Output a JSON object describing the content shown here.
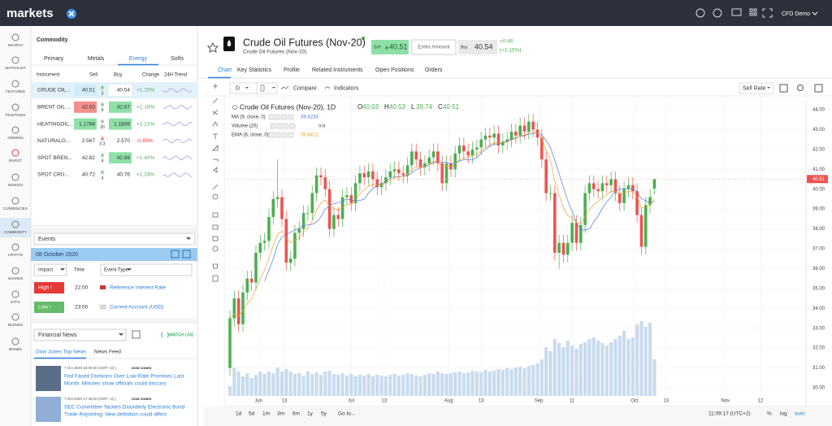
{
  "header": {
    "logo": "markets",
    "account": "CFD Demo"
  },
  "sidebar": [
    "SEARCH",
    "WATCHLIST",
    "FEATURED",
    "POSITIONS",
    "ORDERS",
    "INVEST",
    "INDICES",
    "CURRENCIES",
    "COMMODITY",
    "CRYPTO",
    "SHARES",
    "ETFS",
    "BLENDS",
    "BONDS"
  ],
  "watchlist": {
    "title": "Commodity",
    "tabs": [
      "Primary",
      "Metals",
      "Energy",
      "Softs"
    ],
    "columns": [
      "Instrument",
      "Sell",
      "Buy",
      "Change",
      "24H Trend"
    ],
    "rows": [
      {
        "name": "CRUDE OIL...",
        "sell": "40.51",
        "spread": "3",
        "buy": "40.54",
        "change": "+1.15%",
        "trend": "up",
        "sell_color": "#d3ecf7",
        "buy_color": "#ffffff"
      },
      {
        "name": "BRENT OIL ...",
        "sell": "42.63",
        "spread": "4",
        "buy": "42.67",
        "change": "+1.16%",
        "trend": "up",
        "sell_color": "#f4908a",
        "buy_color": "#8fe0a8"
      },
      {
        "name": "HEATINGOIL...",
        "sell": "1.1788",
        "spread": "20",
        "buy": "1.1808",
        "change": "+1.21%",
        "trend": "up",
        "sell_color": "#8fe0a8",
        "buy_color": "#8fe0a8"
      },
      {
        "name": "NATURALG...",
        "sell": "2.567",
        "spread": "0.3",
        "buy": "2.570",
        "change": "-0.89%",
        "trend": "down",
        "sell_color": "#ffffff",
        "buy_color": "#ffffff"
      },
      {
        "name": "SPOT BREN...",
        "sell": "42.82",
        "spread": "4",
        "buy": "42.86",
        "change": "+1.40%",
        "trend": "up",
        "sell_color": "#ffffff",
        "buy_color": "#8fe0a8"
      },
      {
        "name": "SPOT CRU...",
        "sell": "40.72",
        "spread": "4",
        "buy": "40.76",
        "change": "+1.24%",
        "trend": "up",
        "sell_color": "#ffffff",
        "buy_color": "#ffffff"
      }
    ]
  },
  "events": {
    "title": "Events",
    "date": "08 October 2020",
    "columns": [
      "Impact",
      "Time",
      "Event Type"
    ],
    "rows": [
      {
        "impact": "High !",
        "time": "22:00",
        "event": "Reference Interest Rate",
        "color": "#e53935"
      },
      {
        "impact": "Low !",
        "time": "23:00",
        "event": "Current Account (USD)",
        "color": "#66bb6a"
      }
    ]
  },
  "news": {
    "title": "Financial News",
    "live": "WATCH LIVE",
    "tabs": [
      "Dow Jones Top News",
      "News Feed"
    ],
    "items": [
      {
        "time": "7 Oct 2020 18:00:00 (GMT +2) |",
        "source": "DOW JONES",
        "lines": [
          "Fed Faced Divisions Over Low-Rate Promises Last",
          "Month, Minutes show officials could discuss"
        ]
      },
      {
        "time": "7 Oct 2020 17:48:00 (GMT +2) |",
        "source": "DOW JONES",
        "lines": [
          "SEC Committee Tackles Disorderly Electronic Bond",
          "Trade Reporting; New definition could affect"
        ]
      }
    ]
  },
  "instrument": {
    "name": "Crude Oil Futures (Nov-20)",
    "subtitle": "Crude Oil Futures (Nov-20)",
    "sell_label": "Sell",
    "sell": "40.51",
    "amount": "Enter Amount",
    "buy_label": "Buy",
    "buy": "40.54",
    "change": "+0.46",
    "change_pct": "(+1.15%)",
    "tabs": [
      "Chart",
      "Key Statistics",
      "Profile",
      "Related Instruments",
      "Open Positions",
      "Orders"
    ]
  },
  "toolbar": {
    "interval": "D",
    "compare": "Compare",
    "indicators": "Indicators",
    "price_mode": "Sell Rate"
  },
  "chart_data": {
    "type": "candlestick",
    "title": "Crude Oil Futures (Nov-20), 1D",
    "ohlc_names": [
      "O",
      "H",
      "L",
      "C"
    ],
    "up_color": "#4caf50",
    "down_color": "#ef5350",
    "volume_color": "#c9dbed",
    "indicators": [
      {
        "name": "MA (9, close, 0)",
        "value": "39.4233",
        "color": "#4a79d8"
      },
      {
        "name": "Volume (20)",
        "value": "n/a"
      },
      {
        "name": "EMA (8, close, 0)",
        "value": "39.6412",
        "color": "#f0a030"
      }
    ],
    "ylim": [
      30,
      44
    ],
    "volume_lim": [
      0,
      100
    ],
    "xlim": [
      0,
      133
    ],
    "yticks": [
      {
        "value": 30,
        "label": "30.00"
      },
      {
        "value": 31,
        "label": "31.00"
      },
      {
        "value": 32,
        "label": "32.00"
      },
      {
        "value": 33,
        "label": "33.00"
      },
      {
        "value": 34,
        "label": "34.00"
      },
      {
        "value": 35,
        "label": "35.00"
      },
      {
        "value": 36,
        "label": "36.00"
      },
      {
        "value": 37,
        "label": "37.00"
      },
      {
        "value": 38,
        "label": "38.00"
      },
      {
        "value": 39,
        "label": "39.00"
      },
      {
        "value": 40,
        "label": "40.00"
      },
      {
        "value": 41,
        "label": "41.00"
      },
      {
        "value": 42,
        "label": "42.00"
      },
      {
        "value": 43,
        "label": "43.00"
      },
      {
        "value": 44,
        "label": "44.00"
      }
    ],
    "xticks": [
      {
        "value": 6.6,
        "label": "Jun"
      },
      {
        "value": 12.6,
        "label": "13"
      },
      {
        "value": 28,
        "label": "Jul"
      },
      {
        "value": 35.6,
        "label": "13"
      },
      {
        "value": 50.5,
        "label": "Aug"
      },
      {
        "value": 58,
        "label": "13"
      },
      {
        "value": 71.3,
        "label": "Sep"
      },
      {
        "value": 79,
        "label": "11"
      },
      {
        "value": 93.4,
        "label": "Oct"
      },
      {
        "value": 100.7,
        "label": "13"
      },
      {
        "value": 114.4,
        "label": "Nov"
      },
      {
        "value": 122.5,
        "label": "12"
      }
    ],
    "ohlc": [
      [
        31.0,
        33.9,
        30.6,
        33.5
      ],
      [
        33.5,
        34.9,
        33.1,
        34.5
      ],
      [
        34.5,
        34.9,
        32.8,
        33.2
      ],
      [
        33.2,
        35.2,
        32.8,
        34.8
      ],
      [
        34.8,
        35.9,
        34.4,
        35.5
      ],
      [
        35.5,
        35.9,
        34.9,
        35.3
      ],
      [
        35.3,
        37.2,
        34.9,
        36.8
      ],
      [
        36.8,
        37.7,
        36.4,
        37.3
      ],
      [
        37.3,
        37.8,
        36.9,
        37.4
      ],
      [
        37.4,
        39.0,
        37.0,
        38.6
      ],
      [
        38.6,
        39.9,
        38.2,
        39.5
      ],
      [
        39.5,
        41.5,
        39.1,
        39.6
      ],
      [
        39.6,
        40.0,
        38.1,
        38.5
      ],
      [
        38.5,
        38.9,
        35.9,
        36.3
      ],
      [
        36.3,
        36.9,
        35.9,
        36.5
      ],
      [
        36.5,
        38.2,
        36.1,
        37.8
      ],
      [
        37.8,
        38.4,
        37.4,
        38.0
      ],
      [
        38.0,
        39.2,
        37.6,
        38.8
      ],
      [
        38.8,
        39.2,
        38.4,
        38.8
      ],
      [
        38.8,
        40.2,
        38.4,
        39.8
      ],
      [
        39.8,
        41.1,
        39.4,
        40.7
      ],
      [
        40.7,
        41.1,
        40.2,
        40.6
      ],
      [
        40.6,
        41.0,
        39.6,
        40.0
      ],
      [
        40.0,
        40.4,
        37.6,
        38.0
      ],
      [
        38.0,
        39.1,
        37.6,
        38.7
      ],
      [
        38.7,
        39.1,
        38.1,
        38.5
      ],
      [
        38.5,
        40.0,
        38.1,
        39.6
      ],
      [
        39.6,
        40.1,
        39.2,
        39.7
      ],
      [
        39.7,
        40.1,
        38.9,
        39.3
      ],
      [
        39.3,
        40.7,
        38.9,
        40.3
      ],
      [
        40.3,
        41.2,
        39.9,
        40.8
      ],
      [
        40.8,
        41.2,
        40.2,
        40.6
      ],
      [
        40.6,
        41.3,
        40.2,
        40.9
      ],
      [
        40.9,
        41.3,
        40.1,
        40.5
      ],
      [
        40.5,
        40.9,
        39.7,
        40.1
      ],
      [
        40.1,
        40.7,
        39.7,
        40.3
      ],
      [
        40.3,
        41.0,
        39.9,
        40.6
      ],
      [
        40.6,
        41.3,
        40.2,
        40.9
      ],
      [
        40.9,
        41.4,
        40.5,
        41.0
      ],
      [
        41.0,
        41.4,
        40.4,
        40.8
      ],
      [
        40.8,
        41.2,
        40.3,
        40.7
      ],
      [
        40.7,
        41.6,
        40.3,
        41.2
      ],
      [
        41.2,
        42.3,
        40.8,
        41.9
      ],
      [
        41.9,
        42.3,
        41.1,
        41.5
      ],
      [
        41.5,
        41.9,
        40.7,
        41.1
      ],
      [
        41.1,
        41.7,
        40.7,
        41.3
      ],
      [
        41.3,
        42.0,
        40.9,
        41.6
      ],
      [
        41.6,
        42.3,
        41.2,
        41.9
      ],
      [
        41.9,
        42.3,
        40.9,
        41.3
      ],
      [
        41.3,
        41.7,
        39.9,
        40.3
      ],
      [
        40.3,
        41.7,
        39.9,
        41.3
      ],
      [
        41.3,
        41.7,
        40.6,
        41.0
      ],
      [
        41.0,
        42.2,
        40.6,
        41.8
      ],
      [
        41.8,
        42.6,
        41.4,
        42.2
      ],
      [
        42.2,
        42.6,
        41.5,
        41.9
      ],
      [
        41.9,
        42.3,
        41.3,
        41.7
      ],
      [
        41.7,
        42.4,
        41.3,
        42.0
      ],
      [
        42.0,
        42.5,
        41.6,
        42.1
      ],
      [
        42.1,
        42.9,
        41.7,
        42.5
      ],
      [
        42.5,
        43.1,
        42.1,
        42.7
      ],
      [
        42.7,
        43.1,
        42.2,
        42.6
      ],
      [
        42.6,
        43.2,
        42.2,
        42.8
      ],
      [
        42.8,
        43.2,
        41.8,
        42.2
      ],
      [
        42.2,
        42.8,
        41.8,
        42.4
      ],
      [
        42.4,
        42.9,
        42.0,
        42.5
      ],
      [
        42.5,
        43.3,
        42.1,
        42.9
      ],
      [
        42.9,
        43.3,
        42.3,
        42.7
      ],
      [
        42.7,
        43.6,
        42.3,
        43.2
      ],
      [
        43.2,
        43.6,
        42.5,
        42.9
      ],
      [
        42.9,
        43.8,
        42.5,
        43.4
      ],
      [
        43.4,
        43.8,
        42.6,
        43.0
      ],
      [
        43.0,
        43.4,
        42.2,
        42.6
      ],
      [
        42.6,
        43.0,
        41.1,
        41.5
      ],
      [
        41.5,
        41.9,
        39.4,
        39.8
      ],
      [
        39.8,
        40.2,
        39.4,
        39.8
      ],
      [
        39.8,
        40.2,
        36.4,
        36.8
      ],
      [
        36.8,
        37.7,
        36.0,
        37.3
      ],
      [
        37.3,
        37.7,
        36.3,
        36.7
      ],
      [
        36.7,
        37.7,
        36.3,
        37.3
      ],
      [
        37.3,
        38.7,
        36.9,
        38.3
      ],
      [
        38.3,
        38.7,
        36.9,
        37.3
      ],
      [
        37.3,
        38.6,
        36.9,
        38.2
      ],
      [
        38.2,
        40.2,
        37.8,
        39.8
      ],
      [
        39.8,
        40.7,
        39.4,
        40.3
      ],
      [
        40.3,
        40.7,
        39.6,
        40.0
      ],
      [
        40.0,
        40.4,
        39.5,
        39.9
      ],
      [
        39.9,
        40.7,
        39.5,
        40.3
      ],
      [
        40.3,
        40.7,
        39.8,
        40.2
      ],
      [
        40.2,
        40.9,
        39.8,
        40.5
      ],
      [
        40.5,
        40.9,
        39.4,
        39.8
      ],
      [
        39.8,
        40.2,
        38.9,
        39.3
      ],
      [
        39.3,
        40.4,
        38.9,
        40.0
      ],
      [
        40.0,
        40.6,
        39.6,
        40.2
      ],
      [
        40.2,
        40.6,
        39.5,
        39.9
      ],
      [
        39.9,
        40.3,
        38.3,
        38.7
      ],
      [
        38.7,
        39.1,
        36.7,
        37.1
      ],
      [
        37.1,
        39.6,
        36.7,
        39.2
      ],
      [
        39.2,
        40.0,
        38.8,
        39.6
      ],
      [
        40.03,
        40.53,
        39.74,
        40.51
      ]
    ],
    "volume": [
      12,
      35,
      30,
      24,
      28,
      22,
      26,
      30,
      27,
      30,
      28,
      35,
      30,
      33,
      30,
      27,
      28,
      25,
      30,
      27,
      29,
      26,
      30,
      31,
      27,
      26,
      28,
      25,
      27,
      24,
      26,
      25,
      27,
      24,
      26,
      25,
      24,
      26,
      27,
      25,
      26,
      28,
      27,
      25,
      24,
      26,
      28,
      27,
      30,
      28,
      27,
      28,
      29,
      30,
      28,
      29,
      31,
      30,
      29,
      32,
      30,
      31,
      33,
      32,
      34,
      33,
      35,
      36,
      34,
      37,
      38,
      40,
      45,
      60,
      55,
      70,
      65,
      60,
      68,
      62,
      58,
      64,
      66,
      70,
      72,
      68,
      65,
      62,
      66,
      70,
      74,
      80,
      70,
      72,
      88,
      92,
      85,
      90,
      45
    ]
  },
  "footer": {
    "ranges": [
      "1d",
      "5d",
      "1m",
      "3m",
      "6m",
      "1y",
      "5y",
      "Go to..."
    ],
    "time": "11:09:17 (UTC+2)",
    "options": [
      "%",
      "log",
      "auto"
    ]
  }
}
